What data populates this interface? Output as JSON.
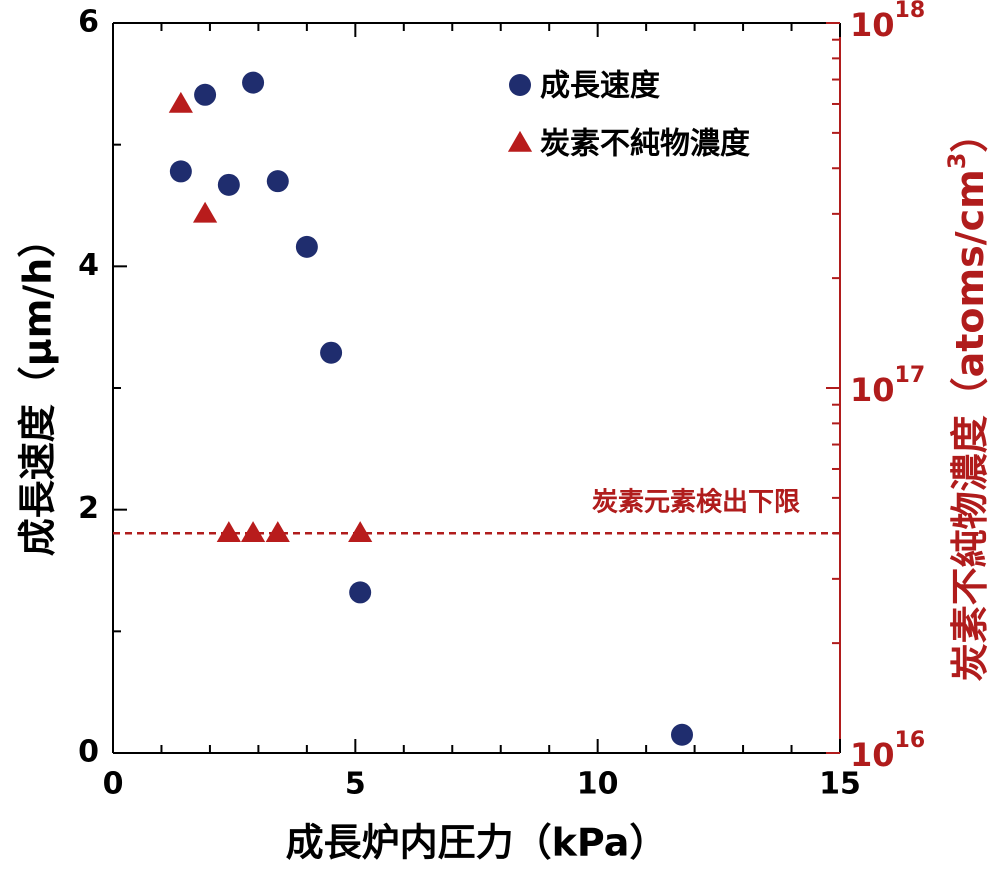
{
  "chart_data": {
    "type": "scatter",
    "xlabel": "成長炉内圧力（kPa）",
    "ylabel": "成長速度（μm/h）",
    "y2label": {
      "text": "炭素不純物濃度（atoms/cm",
      "sup": "3",
      "end": "）"
    },
    "xlim": [
      0,
      15
    ],
    "xticks": [
      0,
      5,
      10,
      15
    ],
    "xminorticks": [
      1,
      2,
      3,
      4,
      6,
      7,
      8,
      9,
      11,
      12,
      13,
      14
    ],
    "ylim": [
      0,
      6
    ],
    "yticks": [
      0,
      2,
      4,
      6
    ],
    "yminorticks": [
      1,
      3,
      5
    ],
    "y2lim": [
      1e+16,
      1e+18
    ],
    "y2scale": "log",
    "y2ticks": [
      {
        "value": 1e+16,
        "label": "10",
        "exponent": "16"
      },
      {
        "value": 1e+17,
        "label": "10",
        "exponent": "17"
      },
      {
        "value": 1e+18,
        "label": "10",
        "exponent": "18"
      }
    ],
    "y2minorticks": [
      2e+16,
      3e+16,
      4e+16,
      5e+16,
      6e+16,
      7e+16,
      8e+16,
      9e+16,
      2e+17,
      3e+17,
      4e+17,
      5e+17,
      6e+17,
      7e+17,
      8e+17,
      9e+17
    ],
    "y2color": "#b01c1c",
    "legend": "upper right",
    "series": [
      {
        "name": "成長速度",
        "color": "#1f2d6e",
        "marker": "circle",
        "x": [
          1.4,
          1.9,
          2.39,
          2.89,
          3.4,
          4.0,
          4.5,
          5.1,
          11.74
        ],
        "values": [
          4.78,
          5.41,
          4.67,
          5.51,
          4.7,
          4.16,
          3.29,
          1.32,
          0.15
        ]
      },
      {
        "name": "炭素不純物濃度",
        "color": "#b81c1c",
        "marker": "triangle",
        "axis": "y2",
        "x": [
          1.4,
          1.9,
          2.39,
          2.89,
          3.4,
          5.1
        ],
        "values": [
          6e+17,
          3e+17,
          4e+16,
          4e+16,
          4e+16,
          4e+16
        ]
      }
    ],
    "reference_line": {
      "value": 4e+16,
      "axis": "y2",
      "label": "炭素元素検出下限"
    }
  }
}
